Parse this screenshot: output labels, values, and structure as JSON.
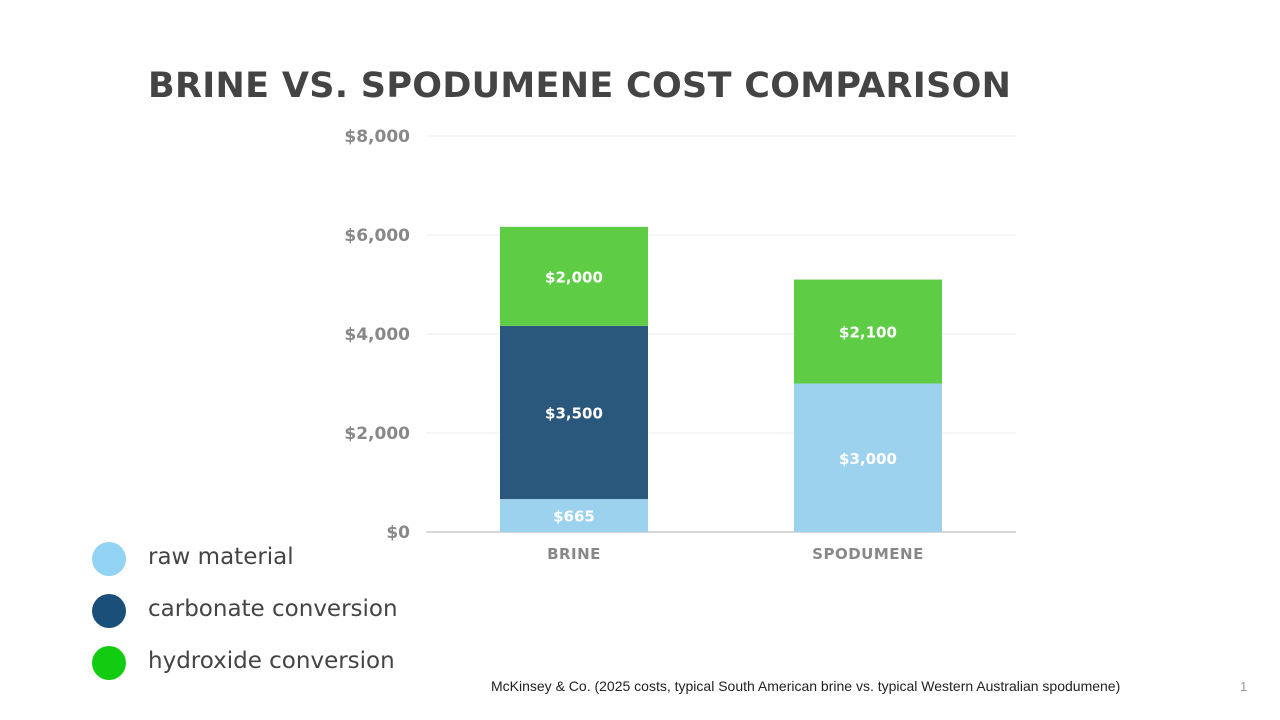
{
  "slide": {
    "title": "BRINE VS. SPODUMENE COST COMPARISON",
    "source": "McKinsey & Co. (2025 costs, typical South American brine vs. typical Western Australian spodumene)",
    "slide_number": "1"
  },
  "legend": [
    {
      "label": "raw material",
      "color": "#92d2f2"
    },
    {
      "label": "carbonate conversion",
      "color": "#1a4f79"
    },
    {
      "label": "hydroxide conversion",
      "color": "#11cc11"
    }
  ],
  "chart_data": {
    "type": "bar",
    "stacked": true,
    "categories": [
      "BRINE",
      "SPODUMENE"
    ],
    "series": [
      {
        "name": "raw material",
        "color": "#9dd2ee",
        "values": [
          665,
          3000
        ],
        "labels": [
          "$665",
          "$3,000"
        ]
      },
      {
        "name": "carbonate conversion",
        "color": "#2a577c",
        "values": [
          3500,
          0
        ],
        "labels": [
          "$3,500",
          ""
        ]
      },
      {
        "name": "hydroxide conversion",
        "color": "#5fcc46",
        "values": [
          2000,
          2100
        ],
        "labels": [
          "$2,000",
          "$2,100"
        ]
      }
    ],
    "yticks": [
      0,
      2000,
      4000,
      6000,
      8000
    ],
    "ytick_labels": [
      "$0",
      "$2,000",
      "$4,000",
      "$6,000",
      "$8,000"
    ],
    "ylim": [
      0,
      8000
    ],
    "grid": true,
    "title": "",
    "xlabel": "",
    "ylabel": ""
  }
}
